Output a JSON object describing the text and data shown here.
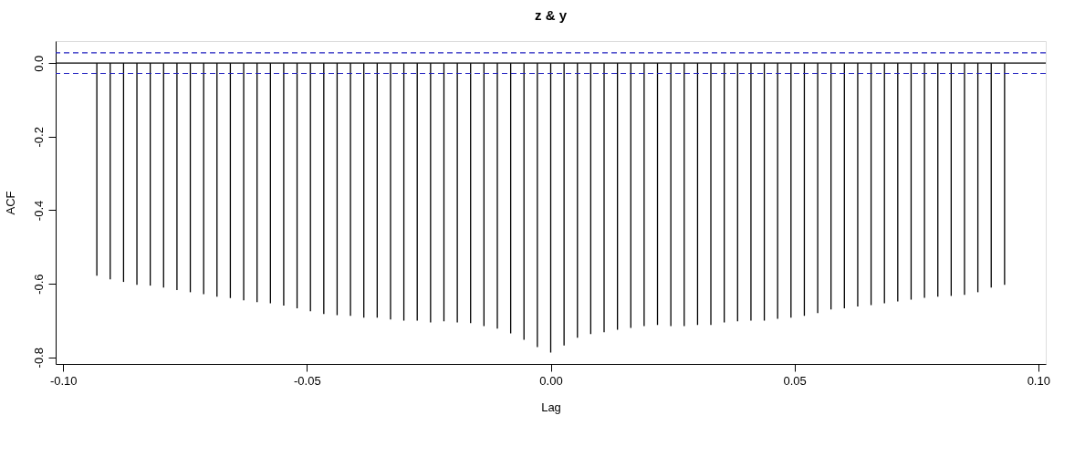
{
  "chart_data": {
    "type": "bar",
    "title": "z & y",
    "xlabel": "Lag",
    "ylabel": "ACF",
    "x": [
      -0.09309,
      -0.09035,
      -0.08761,
      -0.08487,
      -0.08214,
      -0.0794,
      -0.07666,
      -0.07392,
      -0.07118,
      -0.06845,
      -0.06571,
      -0.06297,
      -0.06023,
      -0.05749,
      -0.05476,
      -0.05202,
      -0.04928,
      -0.04654,
      -0.04381,
      -0.04107,
      -0.03833,
      -0.03559,
      -0.03285,
      -0.03012,
      -0.02738,
      -0.02464,
      -0.0219,
      -0.01916,
      -0.01643,
      -0.01369,
      -0.01095,
      -0.00821,
      -0.00548,
      -0.00274,
      0,
      0.00274,
      0.00548,
      0.00821,
      0.01095,
      0.01369,
      0.01643,
      0.01916,
      0.0219,
      0.02464,
      0.02738,
      0.03012,
      0.03285,
      0.03559,
      0.03833,
      0.04107,
      0.04381,
      0.04654,
      0.04928,
      0.05202,
      0.05476,
      0.05749,
      0.06023,
      0.06297,
      0.06571,
      0.06845,
      0.07118,
      0.07392,
      0.07666,
      0.0794,
      0.08214,
      0.08487,
      0.08761,
      0.09035,
      0.09309
    ],
    "series": [
      {
        "color": "#000000",
        "values": [
          -0.578,
          -0.588,
          -0.595,
          -0.603,
          -0.605,
          -0.61,
          -0.617,
          -0.623,
          -0.628,
          -0.635,
          -0.639,
          -0.645,
          -0.65,
          -0.653,
          -0.659,
          -0.667,
          -0.675,
          -0.682,
          -0.685,
          -0.687,
          -0.692,
          -0.692,
          -0.697,
          -0.7,
          -0.7,
          -0.705,
          -0.702,
          -0.705,
          -0.707,
          -0.715,
          -0.722,
          -0.735,
          -0.752,
          -0.772,
          -0.787,
          -0.768,
          -0.747,
          -0.737,
          -0.732,
          -0.725,
          -0.72,
          -0.715,
          -0.712,
          -0.715,
          -0.715,
          -0.712,
          -0.712,
          -0.705,
          -0.702,
          -0.7,
          -0.7,
          -0.695,
          -0.692,
          -0.687,
          -0.68,
          -0.67,
          -0.667,
          -0.662,
          -0.658,
          -0.653,
          -0.648,
          -0.643,
          -0.638,
          -0.635,
          -0.633,
          -0.63,
          -0.623,
          -0.61,
          -0.603
        ]
      }
    ],
    "xlim": [
      -0.1006,
      0.1006
    ],
    "ylim": [
      -0.818,
      0.06
    ],
    "xticks": [
      {
        "value": -0.1,
        "label": "-0.10"
      },
      {
        "value": -0.05,
        "label": "-0.05"
      },
      {
        "value": 0,
        "label": "0.00"
      },
      {
        "value": 0.05,
        "label": "0.05"
      },
      {
        "value": 0.1,
        "label": "0.10"
      }
    ],
    "yticks": [
      {
        "value": -0.8,
        "label": "-0.8"
      },
      {
        "value": -0.6,
        "label": "-0.6"
      },
      {
        "value": -0.4,
        "label": "-0.4"
      },
      {
        "value": -0.2,
        "label": "-0.2"
      },
      {
        "value": 0,
        "label": "0.0"
      }
    ],
    "ref_lines": [
      {
        "axis": "y",
        "value": 0,
        "color": "#000000",
        "line_style": "solid"
      },
      {
        "axis": "y",
        "value": 0.028,
        "color": "#2020c0",
        "line_style": "dashed"
      },
      {
        "axis": "y",
        "value": -0.028,
        "color": "#2020c0",
        "line_style": "dashed"
      }
    ],
    "grid": false
  }
}
